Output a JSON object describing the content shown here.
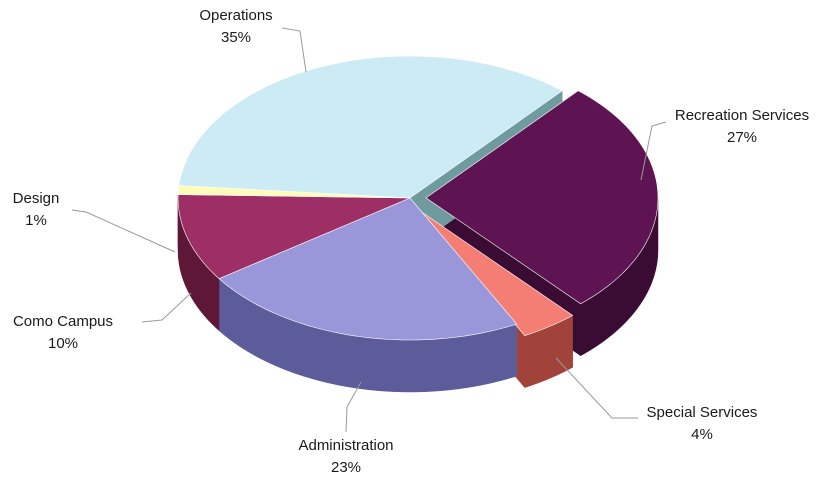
{
  "chart_data": {
    "type": "pie",
    "title": "",
    "style": "3d-exploded",
    "slices": [
      {
        "name": "Operations",
        "value": 35,
        "label": "35%",
        "color": "#CCEBF5",
        "side_color": "#6F9A9E"
      },
      {
        "name": "Recreation Services",
        "value": 27,
        "label": "27%",
        "color": "#5E1452",
        "side_color": "#3A0B33"
      },
      {
        "name": "Special Services",
        "value": 4,
        "label": "4%",
        "color": "#F47E74",
        "side_color": "#A2433B"
      },
      {
        "name": "Administration",
        "value": 23,
        "label": "23%",
        "color": "#9A96DA",
        "side_color": "#5C5C9A"
      },
      {
        "name": "Como Campus",
        "value": 10,
        "label": "10%",
        "color": "#9E2F66",
        "side_color": "#5E1737"
      },
      {
        "name": "Design",
        "value": 1,
        "label": "1%",
        "color": "#FFFBB8",
        "side_color": "#B9B575"
      }
    ],
    "legend": "none",
    "labels": "outside-with-leader-lines"
  }
}
